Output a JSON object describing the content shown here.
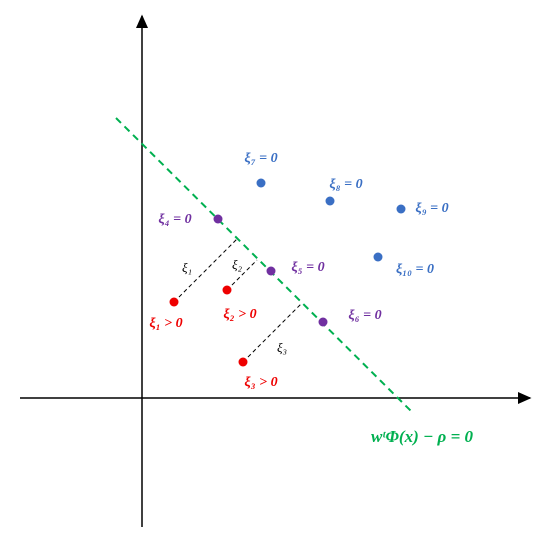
{
  "points": [
    {
      "label": "ξ₇ = 0"
    },
    {
      "label": "ξ₈ = 0"
    },
    {
      "label": "ξ₉ = 0"
    },
    {
      "label": "ξ₁₀ = 0"
    },
    {
      "label": "ξ₄ = 0"
    },
    {
      "label": "ξ₅ = 0"
    },
    {
      "label": "ξ₆ = 0"
    },
    {
      "label": "ξ₁ > 0"
    },
    {
      "label": "ξ₂ > 0"
    },
    {
      "label": "ξ₃ > 0"
    }
  ],
  "slacks": [
    "ξ₁",
    "ξ₂",
    "ξ₃"
  ],
  "boundary": "wᵗΦ(x) − ρ = 0"
}
